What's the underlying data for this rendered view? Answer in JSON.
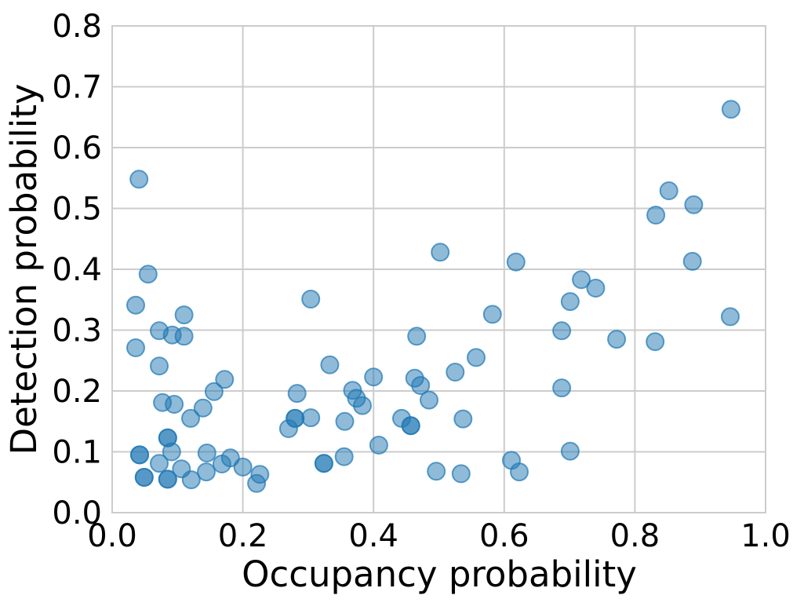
{
  "chart_data": {
    "type": "scatter",
    "title": "",
    "xlabel": "Occupancy probability",
    "ylabel": "Detection probability",
    "xlim": [
      0.0,
      1.0
    ],
    "ylim": [
      0.0,
      0.8
    ],
    "xticks": [
      0.0,
      0.2,
      0.4,
      0.6,
      0.8,
      1.0
    ],
    "xtick_labels": [
      "0.0",
      "0.2",
      "0.4",
      "0.6",
      "0.8",
      "1.0"
    ],
    "yticks": [
      0.0,
      0.1,
      0.2,
      0.3,
      0.4,
      0.5,
      0.6,
      0.7,
      0.8
    ],
    "ytick_labels": [
      "0.0",
      "0.1",
      "0.2",
      "0.3",
      "0.4",
      "0.5",
      "0.6",
      "0.7",
      "0.8"
    ],
    "grid": "on",
    "grid_color": "#cccccc",
    "background_color": "#ffffff",
    "legend": "none",
    "marker": {
      "shape": "circle",
      "radius": 11,
      "color": "#1f77b4",
      "fill_opacity": 0.5,
      "edge_opacity": 0.7,
      "edge_width": 2
    },
    "points": [
      [
        0.041,
        0.548
      ],
      [
        0.055,
        0.392
      ],
      [
        0.036,
        0.341
      ],
      [
        0.11,
        0.325
      ],
      [
        0.072,
        0.299
      ],
      [
        0.092,
        0.292
      ],
      [
        0.11,
        0.29
      ],
      [
        0.036,
        0.271
      ],
      [
        0.072,
        0.241
      ],
      [
        0.172,
        0.219
      ],
      [
        0.156,
        0.199
      ],
      [
        0.283,
        0.196
      ],
      [
        0.077,
        0.181
      ],
      [
        0.095,
        0.178
      ],
      [
        0.139,
        0.172
      ],
      [
        0.12,
        0.155
      ],
      [
        0.304,
        0.351
      ],
      [
        0.333,
        0.243
      ],
      [
        0.4,
        0.223
      ],
      [
        0.368,
        0.201
      ],
      [
        0.374,
        0.188
      ],
      [
        0.383,
        0.176
      ],
      [
        0.27,
        0.138
      ],
      [
        0.28,
        0.155
      ],
      [
        0.28,
        0.155
      ],
      [
        0.304,
        0.156
      ],
      [
        0.356,
        0.15
      ],
      [
        0.324,
        0.081
      ],
      [
        0.324,
        0.081
      ],
      [
        0.355,
        0.092
      ],
      [
        0.408,
        0.111
      ],
      [
        0.443,
        0.155
      ],
      [
        0.457,
        0.143
      ],
      [
        0.457,
        0.143
      ],
      [
        0.485,
        0.185
      ],
      [
        0.537,
        0.154
      ],
      [
        0.466,
        0.29
      ],
      [
        0.463,
        0.221
      ],
      [
        0.472,
        0.209
      ],
      [
        0.525,
        0.231
      ],
      [
        0.557,
        0.255
      ],
      [
        0.502,
        0.428
      ],
      [
        0.582,
        0.326
      ],
      [
        0.618,
        0.412
      ],
      [
        0.688,
        0.299
      ],
      [
        0.701,
        0.347
      ],
      [
        0.718,
        0.383
      ],
      [
        0.74,
        0.369
      ],
      [
        0.772,
        0.285
      ],
      [
        0.831,
        0.281
      ],
      [
        0.832,
        0.489
      ],
      [
        0.852,
        0.529
      ],
      [
        0.89,
        0.506
      ],
      [
        0.888,
        0.413
      ],
      [
        0.947,
        0.663
      ],
      [
        0.946,
        0.322
      ],
      [
        0.688,
        0.205
      ],
      [
        0.701,
        0.101
      ],
      [
        0.611,
        0.086
      ],
      [
        0.623,
        0.067
      ],
      [
        0.496,
        0.068
      ],
      [
        0.534,
        0.064
      ],
      [
        0.085,
        0.123
      ],
      [
        0.085,
        0.123
      ],
      [
        0.042,
        0.095
      ],
      [
        0.042,
        0.095
      ],
      [
        0.091,
        0.1
      ],
      [
        0.072,
        0.081
      ],
      [
        0.106,
        0.072
      ],
      [
        0.049,
        0.058
      ],
      [
        0.049,
        0.058
      ],
      [
        0.085,
        0.055
      ],
      [
        0.085,
        0.055
      ],
      [
        0.121,
        0.054
      ],
      [
        0.145,
        0.098
      ],
      [
        0.144,
        0.067
      ],
      [
        0.168,
        0.08
      ],
      [
        0.181,
        0.09
      ],
      [
        0.2,
        0.075
      ],
      [
        0.226,
        0.063
      ],
      [
        0.221,
        0.048
      ]
    ]
  }
}
